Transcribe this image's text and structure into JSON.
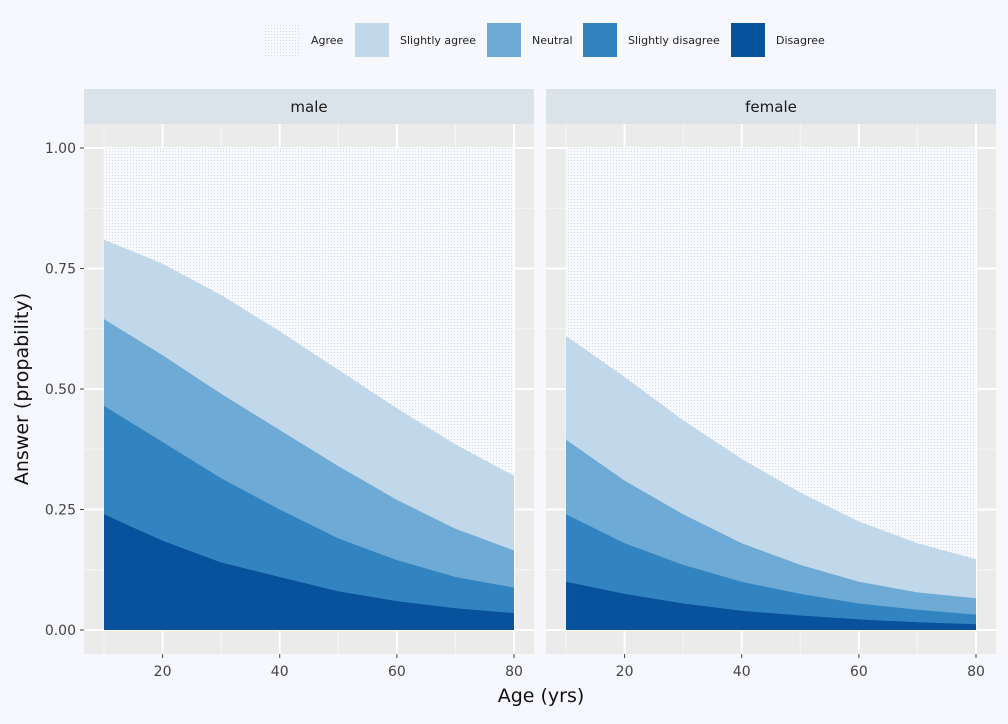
{
  "chart_data": {
    "type": "area",
    "xlabel": "Age (yrs)",
    "ylabel": "Answer (propability)",
    "xlim": [
      10,
      80
    ],
    "ylim": [
      0,
      1
    ],
    "x_ticks": [
      "20",
      "40",
      "60",
      "80"
    ],
    "y_ticks": [
      "0.00",
      "0.25",
      "0.50",
      "0.75",
      "1.00"
    ],
    "legend_position": "top",
    "categories": [
      "Agree",
      "Slightly agree",
      "Neutral",
      "Slightly disagree",
      "Disagree"
    ],
    "colors": {
      "Agree": "#f3f6fb",
      "Slightly agree": "#c0d8e9",
      "Neutral": "#6eaad6",
      "Slightly disagree": "#3284c0",
      "Disagree": "#08519c"
    },
    "x": [
      10,
      20,
      30,
      40,
      50,
      60,
      70,
      80
    ],
    "panels": [
      {
        "label": "male",
        "cumulative": {
          "Disagree": [
            0.24,
            0.185,
            0.14,
            0.11,
            0.08,
            0.06,
            0.045,
            0.035
          ],
          "Slightly disagree": [
            0.465,
            0.39,
            0.315,
            0.25,
            0.19,
            0.145,
            0.11,
            0.088
          ],
          "Neutral": [
            0.645,
            0.57,
            0.49,
            0.415,
            0.34,
            0.27,
            0.21,
            0.165
          ],
          "Slightly agree": [
            0.81,
            0.76,
            0.695,
            0.62,
            0.54,
            0.46,
            0.385,
            0.32
          ],
          "Agree": [
            1,
            1,
            1,
            1,
            1,
            1,
            1,
            1
          ]
        }
      },
      {
        "label": "female",
        "cumulative": {
          "Disagree": [
            0.1,
            0.075,
            0.055,
            0.04,
            0.03,
            0.022,
            0.016,
            0.012
          ],
          "Slightly disagree": [
            0.24,
            0.18,
            0.135,
            0.1,
            0.075,
            0.055,
            0.042,
            0.032
          ],
          "Neutral": [
            0.395,
            0.31,
            0.24,
            0.18,
            0.135,
            0.1,
            0.078,
            0.066
          ],
          "Slightly agree": [
            0.61,
            0.525,
            0.435,
            0.355,
            0.285,
            0.225,
            0.18,
            0.147
          ],
          "Agree": [
            1,
            1,
            1,
            1,
            1,
            1,
            1,
            1
          ]
        }
      }
    ]
  }
}
